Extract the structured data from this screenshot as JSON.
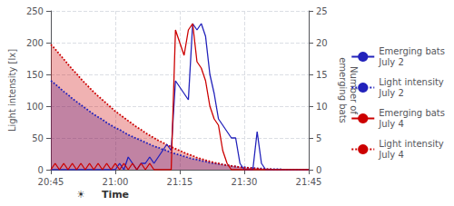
{
  "chart_data": {
    "type": "line",
    "x": [
      0,
      1,
      2,
      3,
      4,
      5,
      6,
      7,
      8,
      9,
      10,
      11,
      12,
      13,
      14,
      15,
      16,
      17,
      18,
      19,
      20,
      21,
      22,
      23,
      24,
      25,
      26,
      27,
      28,
      29,
      30,
      31,
      32,
      33,
      34,
      35,
      36,
      37,
      38,
      39,
      40,
      41,
      42,
      43,
      44,
      45,
      46,
      47,
      48,
      49,
      50,
      51,
      52,
      53,
      54,
      55,
      56,
      57,
      58,
      59,
      60
    ],
    "xlim": [
      0,
      60
    ],
    "xticks": [
      {
        "value": 0,
        "label": "20:45"
      },
      {
        "value": 15,
        "label": "21:00"
      },
      {
        "value": 30,
        "label": "21:15"
      },
      {
        "value": 45,
        "label": "21:30"
      },
      {
        "value": 60,
        "label": "21:45"
      }
    ],
    "ylabel": "Light intensity [lx]",
    "ylim": [
      0,
      250
    ],
    "yticks": [
      0,
      50,
      100,
      150,
      200,
      250
    ],
    "y2label": "Number of\nemerging bats",
    "y2lim": [
      0,
      25
    ],
    "y2ticks": [
      0,
      5,
      10,
      15,
      20,
      25
    ],
    "grid": true,
    "legend": "right",
    "annotations": [
      {
        "text": "☀",
        "x": 7
      },
      {
        "text": "Time",
        "x": 15
      }
    ],
    "series": [
      {
        "name": "Emerging bats\nJuly 2",
        "type": "line",
        "axis": "y2",
        "color": "#2222bb",
        "line_style": "solid",
        "values": [
          0,
          0,
          0,
          0,
          0,
          0,
          0,
          0,
          0,
          0,
          0,
          0,
          0,
          0,
          0,
          0,
          1,
          0,
          2,
          1,
          0,
          1,
          1,
          2,
          1,
          2,
          3,
          4,
          3,
          14,
          13,
          12,
          11,
          23,
          22,
          23,
          21,
          15,
          12,
          8,
          7,
          6,
          5,
          5,
          1,
          0,
          0,
          0,
          6,
          1,
          0,
          0,
          0,
          0,
          0,
          0,
          0,
          0,
          0,
          0,
          0
        ]
      },
      {
        "name": "Light intensity\nJuly 2",
        "type": "area",
        "axis": "y",
        "color": "#2222bb",
        "line_style": "dotted",
        "values": [
          140,
          135,
          129,
          123,
          118,
          112,
          107,
          102,
          97,
          92,
          87,
          83,
          79,
          74,
          70,
          66,
          63,
          59,
          55,
          52,
          49,
          46,
          43,
          40,
          37,
          35,
          32,
          30,
          27,
          25,
          23,
          21,
          19,
          17,
          16,
          14,
          13,
          11,
          10,
          9,
          8,
          7,
          6,
          5,
          4,
          4,
          3,
          3,
          2,
          2,
          1,
          1,
          1,
          1,
          0,
          0,
          0,
          0,
          0,
          0,
          0
        ]
      },
      {
        "name": "Emerging bats\nJuly 4",
        "type": "line",
        "axis": "y2",
        "color": "#cc0000",
        "line_style": "solid",
        "values": [
          0,
          1,
          0,
          1,
          0,
          1,
          0,
          1,
          0,
          1,
          0,
          1,
          0,
          1,
          0,
          1,
          0,
          1,
          0,
          1,
          0,
          1,
          0,
          1,
          0,
          0,
          0,
          0,
          0,
          22,
          20,
          18,
          22,
          23,
          17,
          16,
          14,
          10,
          8,
          7,
          3,
          1,
          0,
          0,
          0,
          0,
          0,
          0,
          0,
          0,
          0,
          0,
          0,
          0,
          0,
          0,
          0,
          0,
          0,
          0,
          0
        ]
      },
      {
        "name": "Light intensity\nJuly 4",
        "type": "area",
        "axis": "y",
        "color": "#cc0000",
        "line_style": "dotted",
        "values": [
          197,
          190,
          182,
          174,
          166,
          158,
          151,
          143,
          136,
          129,
          122,
          116,
          110,
          104,
          98,
          92,
          87,
          82,
          77,
          72,
          67,
          63,
          58,
          54,
          50,
          46,
          43,
          39,
          36,
          33,
          30,
          27,
          24,
          22,
          19,
          17,
          15,
          13,
          11,
          10,
          8,
          7,
          6,
          5,
          4,
          3,
          3,
          2,
          2,
          1,
          1,
          1,
          0,
          0,
          0,
          0,
          0,
          0,
          0,
          0,
          0
        ]
      }
    ]
  }
}
